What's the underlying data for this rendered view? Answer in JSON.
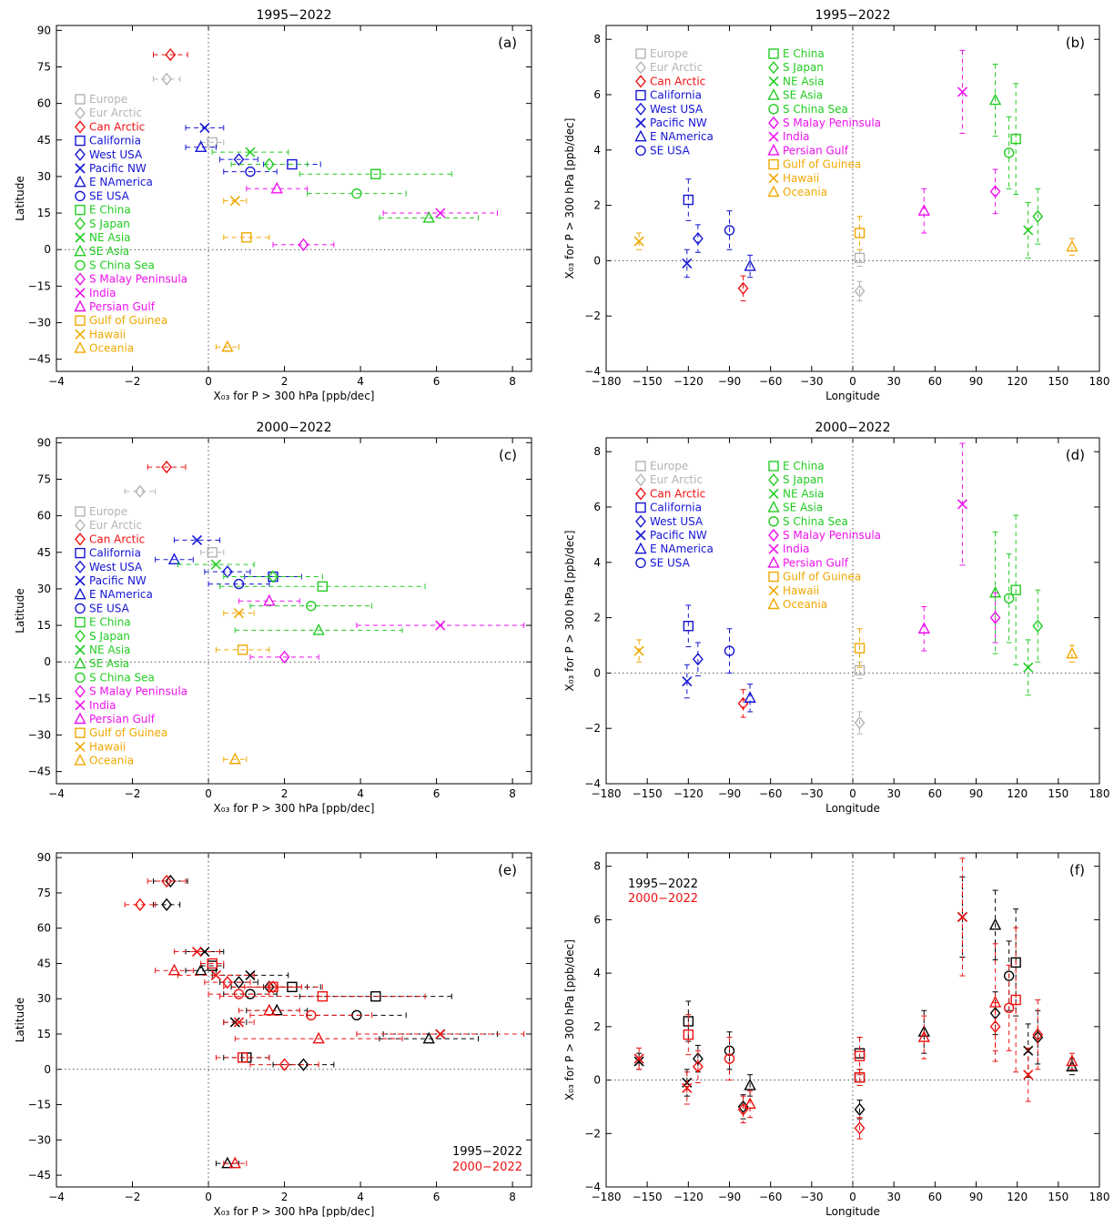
{
  "colors": {
    "europe": "#b4b4b4",
    "can": "#ee1111",
    "usa": "#1515d5",
    "asia": "#22cc22",
    "india": "#ee11ee",
    "gulf": "#f0a800",
    "black": "#000000"
  },
  "legend_entries": [
    {
      "name": "Europe",
      "marker": "square",
      "color": "europe"
    },
    {
      "name": "Eur Arctic",
      "marker": "diamond",
      "color": "europe"
    },
    {
      "name": "Can Arctic",
      "marker": "diamond",
      "color": "can"
    },
    {
      "name": "California",
      "marker": "square",
      "color": "usa"
    },
    {
      "name": "West USA",
      "marker": "diamond",
      "color": "usa"
    },
    {
      "name": "Pacific NW",
      "marker": "x",
      "color": "usa"
    },
    {
      "name": "E NAmerica",
      "marker": "triangle",
      "color": "usa"
    },
    {
      "name": "SE USA",
      "marker": "circle",
      "color": "usa"
    },
    {
      "name": "E China",
      "marker": "square",
      "color": "asia"
    },
    {
      "name": "S Japan",
      "marker": "diamond",
      "color": "asia"
    },
    {
      "name": "NE Asia",
      "marker": "x",
      "color": "asia"
    },
    {
      "name": "SE Asia",
      "marker": "triangle",
      "color": "asia"
    },
    {
      "name": "S China Sea",
      "marker": "circle",
      "color": "asia"
    },
    {
      "name": "S Malay Peninsula",
      "marker": "diamond",
      "color": "india"
    },
    {
      "name": "India",
      "marker": "x",
      "color": "india"
    },
    {
      "name": "Persian Gulf",
      "marker": "triangle",
      "color": "india"
    },
    {
      "name": "Gulf of Guinea",
      "marker": "square",
      "color": "gulf"
    },
    {
      "name": "Hawaii",
      "marker": "x",
      "color": "gulf"
    },
    {
      "name": "Oceania",
      "marker": "triangle",
      "color": "gulf"
    }
  ],
  "labels": {
    "xlabel_trend": "X₀₃ for P > 300 hPa  [ppb/dec]",
    "ylabel_lat": "Latitude",
    "xlabel_lon": "Longitude",
    "ylabel_trend": "X₀₃ for P > 300 hPa  [ppb/dec]",
    "period_1": "1995−2022",
    "period_2": "2000−2022"
  },
  "chart_data": [
    {
      "panel": "(a)",
      "type": "scatter",
      "title": "1995−2022",
      "xlabel": "X₀₃ for P > 300 hPa  [ppb/dec]",
      "ylabel": "Latitude",
      "xlim": [
        -4,
        8.5
      ],
      "ylim": [
        -50,
        92
      ],
      "xticks": [
        -4,
        -2,
        0,
        2,
        4,
        6,
        8
      ],
      "yticks": [
        -45,
        -30,
        -15,
        0,
        15,
        30,
        45,
        60,
        75,
        90
      ],
      "series": [
        {
          "name": "Europe",
          "x": 0.1,
          "y": 44,
          "err": 0.3
        },
        {
          "name": "Eur Arctic",
          "x": -1.1,
          "y": 70,
          "err": 0.35
        },
        {
          "name": "Can Arctic",
          "x": -1.0,
          "y": 80,
          "err": 0.45
        },
        {
          "name": "California",
          "x": 2.2,
          "y": 35,
          "err": 0.75
        },
        {
          "name": "West USA",
          "x": 0.8,
          "y": 37,
          "err": 0.5
        },
        {
          "name": "Pacific NW",
          "x": -0.1,
          "y": 50,
          "err": 0.5
        },
        {
          "name": "E NAmerica",
          "x": -0.2,
          "y": 42,
          "err": 0.4
        },
        {
          "name": "SE USA",
          "x": 1.1,
          "y": 32,
          "err": 0.7
        },
        {
          "name": "E China",
          "x": 4.4,
          "y": 31,
          "err": 2.0
        },
        {
          "name": "S Japan",
          "x": 1.6,
          "y": 35,
          "err": 1.0
        },
        {
          "name": "NE Asia",
          "x": 1.1,
          "y": 40,
          "err": 1.0
        },
        {
          "name": "SE Asia",
          "x": 5.8,
          "y": 13,
          "err": 1.3
        },
        {
          "name": "S China Sea",
          "x": 3.9,
          "y": 23,
          "err": 1.3
        },
        {
          "name": "S Malay Peninsula",
          "x": 2.5,
          "y": 2,
          "err": 0.8
        },
        {
          "name": "India",
          "x": 6.1,
          "y": 15,
          "err": 1.5
        },
        {
          "name": "Persian Gulf",
          "x": 1.8,
          "y": 25,
          "err": 0.8
        },
        {
          "name": "Gulf of Guinea",
          "x": 1.0,
          "y": 5,
          "err": 0.6
        },
        {
          "name": "Hawaii",
          "x": 0.7,
          "y": 20,
          "err": 0.3
        },
        {
          "name": "Oceania",
          "x": 0.5,
          "y": -40,
          "err": 0.3
        }
      ]
    },
    {
      "panel": "(b)",
      "type": "scatter",
      "title": "1995−2022",
      "xlabel": "Longitude",
      "ylabel": "X₀₃ for P > 300 hPa  [ppb/dec]",
      "xlim": [
        -180,
        180
      ],
      "ylim": [
        -4,
        8.5
      ],
      "xticks": [
        -180,
        -150,
        -120,
        -90,
        -60,
        -30,
        0,
        30,
        60,
        90,
        120,
        150,
        180
      ],
      "yticks": [
        -4,
        -2,
        0,
        2,
        4,
        6,
        8
      ],
      "series": [
        {
          "name": "Europe",
          "x": 5,
          "y": 0.1,
          "err": 0.3
        },
        {
          "name": "Eur Arctic",
          "x": 5,
          "y": -1.1,
          "err": 0.35
        },
        {
          "name": "Can Arctic",
          "x": -80,
          "y": -1.0,
          "err": 0.45
        },
        {
          "name": "California",
          "x": -120,
          "y": 2.2,
          "err": 0.75
        },
        {
          "name": "West USA",
          "x": -113,
          "y": 0.8,
          "err": 0.5
        },
        {
          "name": "Pacific NW",
          "x": -121,
          "y": -0.1,
          "err": 0.5
        },
        {
          "name": "E NAmerica",
          "x": -75,
          "y": -0.2,
          "err": 0.4
        },
        {
          "name": "SE USA",
          "x": -90,
          "y": 1.1,
          "err": 0.7
        },
        {
          "name": "E China",
          "x": 119,
          "y": 4.4,
          "err": 2.0
        },
        {
          "name": "S Japan",
          "x": 135,
          "y": 1.6,
          "err": 1.0
        },
        {
          "name": "NE Asia",
          "x": 128,
          "y": 1.1,
          "err": 1.0
        },
        {
          "name": "SE Asia",
          "x": 104,
          "y": 5.8,
          "err": 1.3
        },
        {
          "name": "S China Sea",
          "x": 114,
          "y": 3.9,
          "err": 1.3
        },
        {
          "name": "S Malay Peninsula",
          "x": 104,
          "y": 2.5,
          "err": 0.8
        },
        {
          "name": "India",
          "x": 80,
          "y": 6.1,
          "err": 1.5
        },
        {
          "name": "Persian Gulf",
          "x": 52,
          "y": 1.8,
          "err": 0.8
        },
        {
          "name": "Gulf of Guinea",
          "x": 5,
          "y": 1.0,
          "err": 0.6
        },
        {
          "name": "Hawaii",
          "x": -156,
          "y": 0.7,
          "err": 0.3
        },
        {
          "name": "Oceania",
          "x": 160,
          "y": 0.5,
          "err": 0.3
        }
      ]
    },
    {
      "panel": "(c)",
      "type": "scatter",
      "title": "2000−2022",
      "xlabel": "X₀₃ for P > 300 hPa  [ppb/dec]",
      "ylabel": "Latitude",
      "xlim": [
        -4,
        8.5
      ],
      "ylim": [
        -50,
        92
      ],
      "xticks": [
        -4,
        -2,
        0,
        2,
        4,
        6,
        8
      ],
      "yticks": [
        -45,
        -30,
        -15,
        0,
        15,
        30,
        45,
        60,
        75,
        90
      ],
      "series": [
        {
          "name": "Europe",
          "x": 0.1,
          "y": 45,
          "err": 0.3
        },
        {
          "name": "Eur Arctic",
          "x": -1.8,
          "y": 70,
          "err": 0.4
        },
        {
          "name": "Can Arctic",
          "x": -1.1,
          "y": 80,
          "err": 0.5
        },
        {
          "name": "California",
          "x": 1.7,
          "y": 35,
          "err": 0.75
        },
        {
          "name": "West USA",
          "x": 0.5,
          "y": 37,
          "err": 0.6
        },
        {
          "name": "Pacific NW",
          "x": -0.3,
          "y": 50,
          "err": 0.6
        },
        {
          "name": "E NAmerica",
          "x": -0.9,
          "y": 42,
          "err": 0.5
        },
        {
          "name": "SE USA",
          "x": 0.8,
          "y": 32,
          "err": 0.8
        },
        {
          "name": "E China",
          "x": 3.0,
          "y": 31,
          "err": 2.7
        },
        {
          "name": "S Japan",
          "x": 1.7,
          "y": 35,
          "err": 1.3
        },
        {
          "name": "NE Asia",
          "x": 0.2,
          "y": 40,
          "err": 1.0
        },
        {
          "name": "SE Asia",
          "x": 2.9,
          "y": 13,
          "err": 2.2
        },
        {
          "name": "S China Sea",
          "x": 2.7,
          "y": 23,
          "err": 1.6
        },
        {
          "name": "S Malay Peninsula",
          "x": 2.0,
          "y": 2,
          "err": 0.9
        },
        {
          "name": "India",
          "x": 6.1,
          "y": 15,
          "err": 2.2
        },
        {
          "name": "Persian Gulf",
          "x": 1.6,
          "y": 25,
          "err": 0.8
        },
        {
          "name": "Gulf of Guinea",
          "x": 0.9,
          "y": 5,
          "err": 0.7
        },
        {
          "name": "Hawaii",
          "x": 0.8,
          "y": 20,
          "err": 0.4
        },
        {
          "name": "Oceania",
          "x": 0.7,
          "y": -40,
          "err": 0.3
        }
      ]
    },
    {
      "panel": "(d)",
      "type": "scatter",
      "title": "2000−2022",
      "xlabel": "Longitude",
      "ylabel": "X₀₃ for P > 300 hPa  [ppb/dec]",
      "xlim": [
        -180,
        180
      ],
      "ylim": [
        -4,
        8.5
      ],
      "xticks": [
        -180,
        -150,
        -120,
        -90,
        -60,
        -30,
        0,
        30,
        60,
        90,
        120,
        150,
        180
      ],
      "yticks": [
        -4,
        -2,
        0,
        2,
        4,
        6,
        8
      ],
      "series": [
        {
          "name": "Europe",
          "x": 5,
          "y": 0.1,
          "err": 0.3
        },
        {
          "name": "Eur Arctic",
          "x": 5,
          "y": -1.8,
          "err": 0.4
        },
        {
          "name": "Can Arctic",
          "x": -80,
          "y": -1.1,
          "err": 0.5
        },
        {
          "name": "California",
          "x": -120,
          "y": 1.7,
          "err": 0.75
        },
        {
          "name": "West USA",
          "x": -113,
          "y": 0.5,
          "err": 0.6
        },
        {
          "name": "Pacific NW",
          "x": -121,
          "y": -0.3,
          "err": 0.6
        },
        {
          "name": "E NAmerica",
          "x": -75,
          "y": -0.9,
          "err": 0.5
        },
        {
          "name": "SE USA",
          "x": -90,
          "y": 0.8,
          "err": 0.8
        },
        {
          "name": "E China",
          "x": 119,
          "y": 3.0,
          "err": 2.7
        },
        {
          "name": "S Japan",
          "x": 135,
          "y": 1.7,
          "err": 1.3
        },
        {
          "name": "NE Asia",
          "x": 128,
          "y": 0.2,
          "err": 1.0
        },
        {
          "name": "SE Asia",
          "x": 104,
          "y": 2.9,
          "err": 2.2
        },
        {
          "name": "S China Sea",
          "x": 114,
          "y": 2.7,
          "err": 1.6
        },
        {
          "name": "S Malay Peninsula",
          "x": 104,
          "y": 2.0,
          "err": 0.9
        },
        {
          "name": "India",
          "x": 80,
          "y": 6.1,
          "err": 2.2
        },
        {
          "name": "Persian Gulf",
          "x": 52,
          "y": 1.6,
          "err": 0.8
        },
        {
          "name": "Gulf of Guinea",
          "x": 5,
          "y": 0.9,
          "err": 0.7
        },
        {
          "name": "Hawaii",
          "x": -156,
          "y": 0.8,
          "err": 0.4
        },
        {
          "name": "Oceania",
          "x": 160,
          "y": 0.7,
          "err": 0.3
        }
      ]
    },
    {
      "panel": "(e)",
      "type": "scatter",
      "title": "",
      "xlabel": "X₀₃ for P > 300 hPa  [ppb/dec]",
      "ylabel": "Latitude",
      "xlim": [
        -4,
        8.5
      ],
      "ylim": [
        -50,
        92
      ],
      "xticks": [
        -4,
        -2,
        0,
        2,
        4,
        6,
        8
      ],
      "yticks": [
        -45,
        -30,
        -15,
        0,
        15,
        30,
        45,
        60,
        75,
        90
      ],
      "overlay": [
        "(a)",
        "(c)"
      ],
      "legend": [
        "1995−2022",
        "2000−2022"
      ]
    },
    {
      "panel": "(f)",
      "type": "scatter",
      "title": "",
      "xlabel": "Longitude",
      "ylabel": "X₀₃ for P > 300 hPa  [ppb/dec]",
      "xlim": [
        -180,
        180
      ],
      "ylim": [
        -4,
        8.5
      ],
      "xticks": [
        -180,
        -150,
        -120,
        -90,
        -60,
        -30,
        0,
        30,
        60,
        90,
        120,
        150,
        180
      ],
      "yticks": [
        -4,
        -2,
        0,
        2,
        4,
        6,
        8
      ],
      "overlay": [
        "(b)",
        "(d)"
      ],
      "legend": [
        "1995−2022",
        "2000−2022"
      ]
    }
  ]
}
